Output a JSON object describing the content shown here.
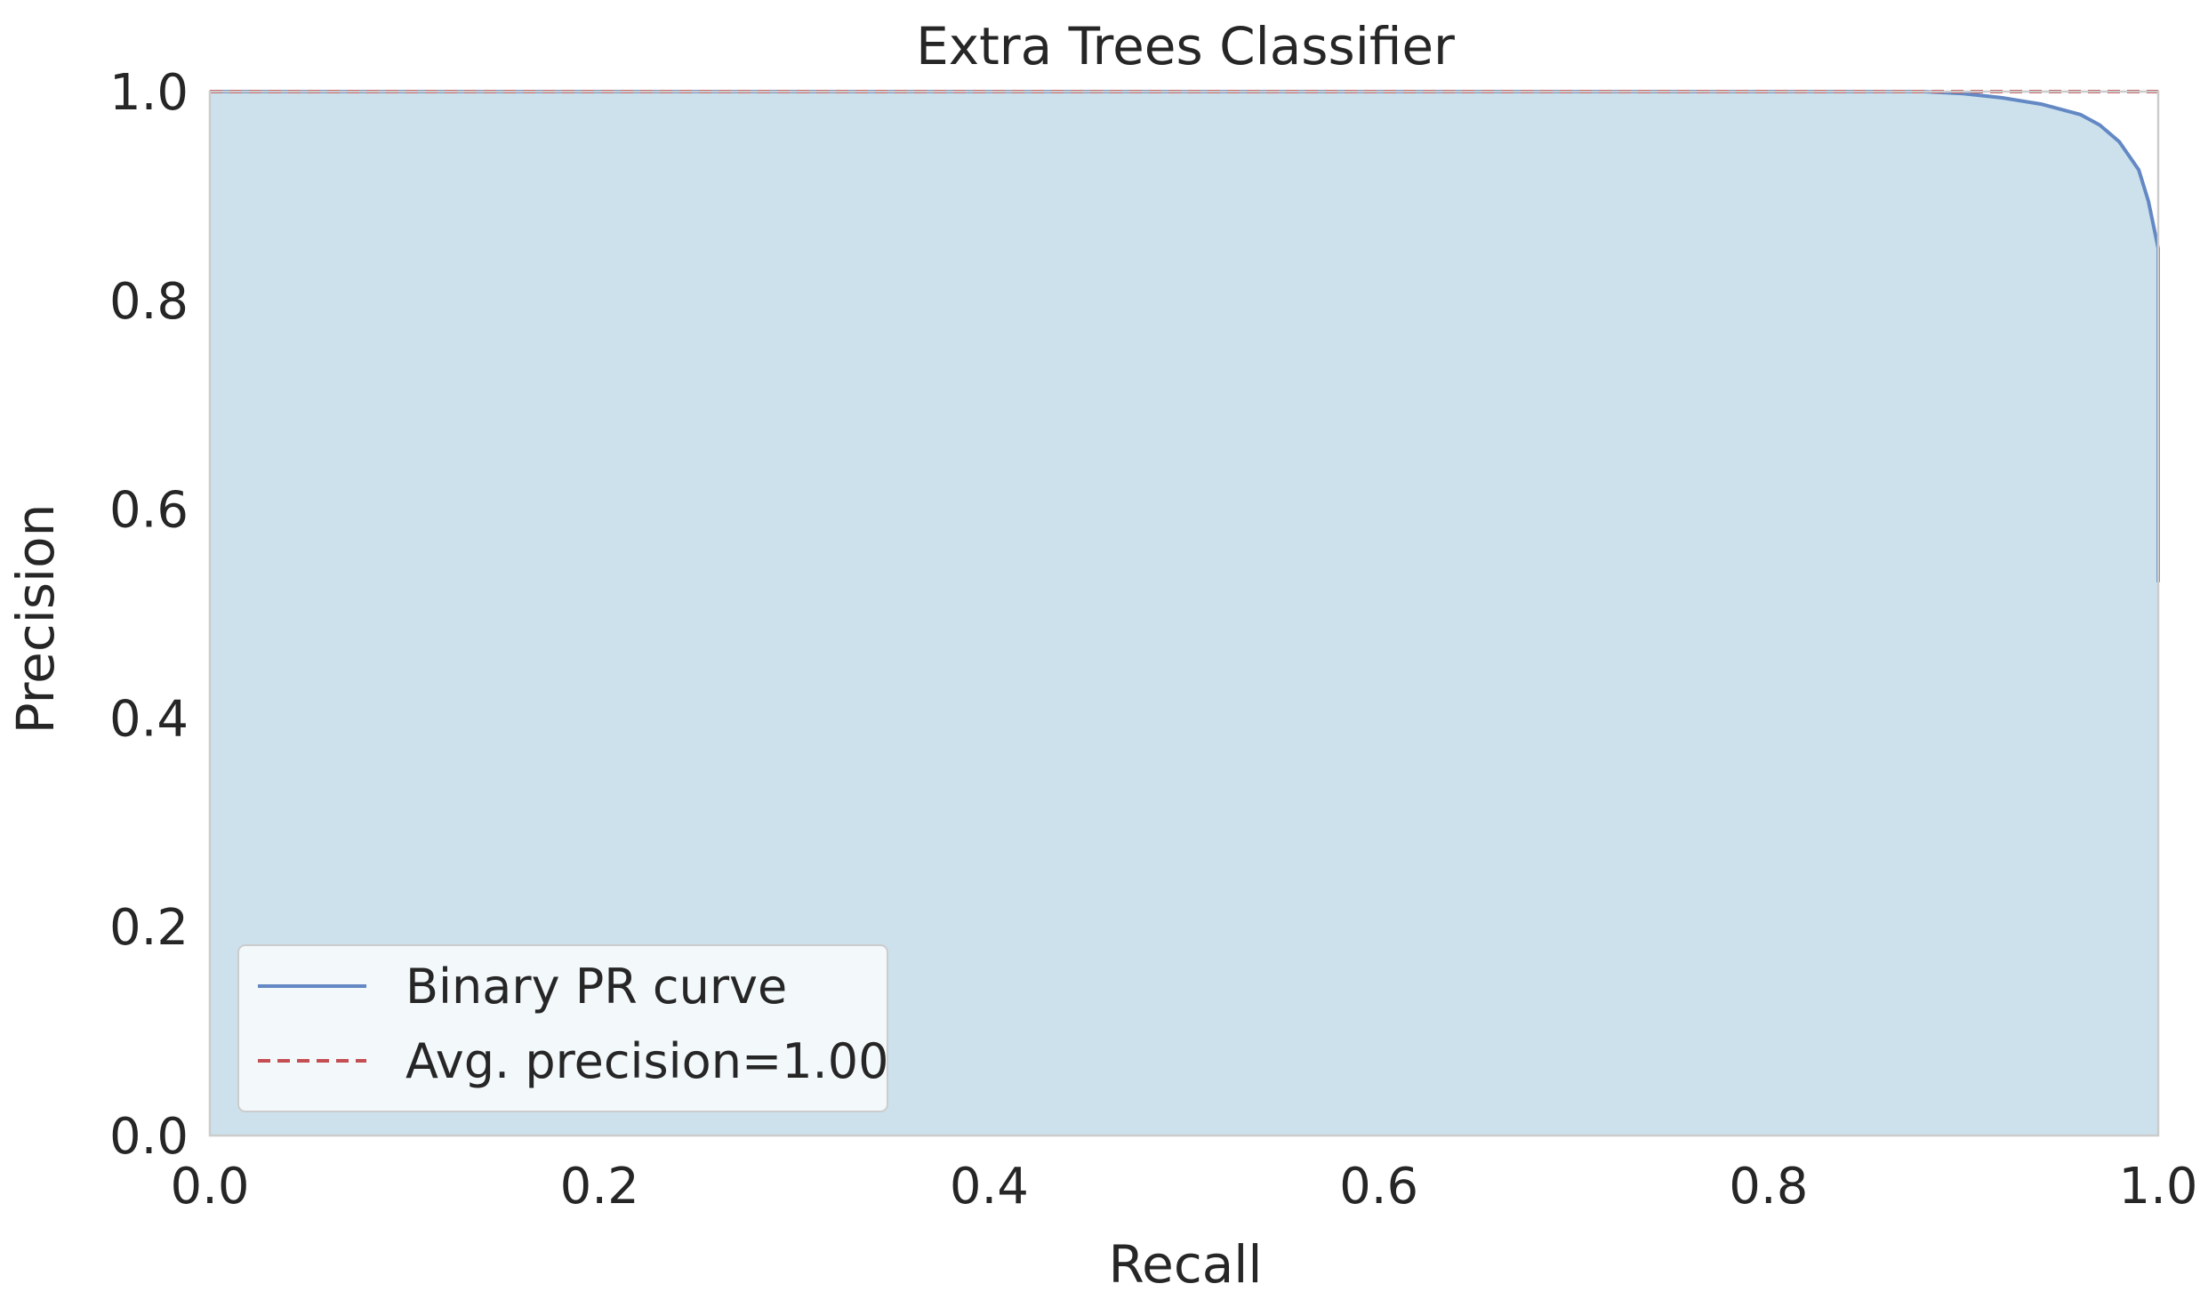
{
  "colors": {
    "fill_area": "#cce1ec",
    "curve": "#6388c4",
    "avg_line": "#c44e52",
    "frame": "#cccccc",
    "legend_bg": "#f3f8fb",
    "legend_border": "#cccccc"
  },
  "chart_data": {
    "type": "area",
    "title": "Extra Trees Classifier",
    "xlabel": "Recall",
    "ylabel": "Precision",
    "xlim": [
      0.0,
      1.0
    ],
    "ylim": [
      0.0,
      1.0
    ],
    "grid": false,
    "legend_position": "lower-left",
    "x_ticks": [
      "0.0",
      "0.2",
      "0.4",
      "0.6",
      "0.8",
      "1.0"
    ],
    "y_ticks": [
      "0.0",
      "0.2",
      "0.4",
      "0.6",
      "0.8",
      "1.0"
    ],
    "series": [
      {
        "name": "Binary PR curve",
        "style": "solid",
        "fill_under": true,
        "x": [
          0.0,
          0.86,
          0.88,
          0.9,
          0.92,
          0.94,
          0.96,
          0.97,
          0.98,
          0.99,
          0.995,
          1.0,
          1.0
        ],
        "y": [
          1.0,
          1.0,
          1.0,
          0.998,
          0.994,
          0.988,
          0.978,
          0.968,
          0.952,
          0.925,
          0.895,
          0.85,
          0.53
        ]
      },
      {
        "name": "Avg. precision=1.00",
        "style": "dashed",
        "fill_under": false,
        "x": [
          0.0,
          1.0
        ],
        "y": [
          1.0,
          1.0
        ]
      }
    ]
  }
}
